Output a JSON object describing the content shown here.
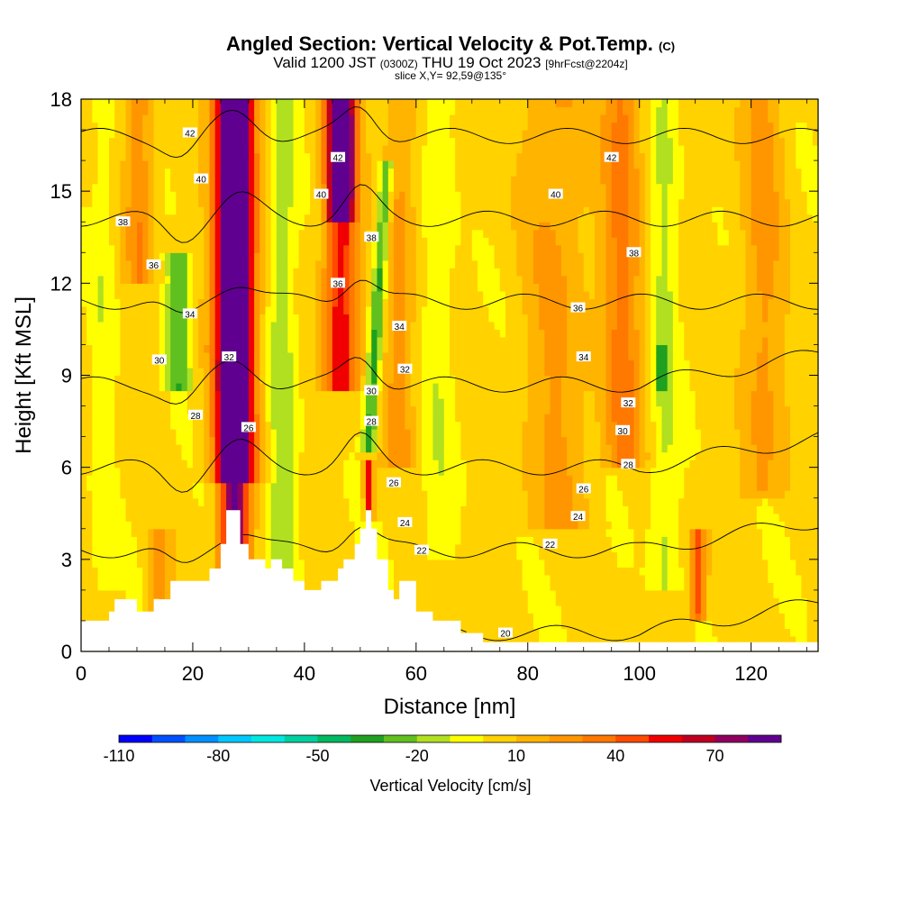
{
  "header": {
    "title": "Angled Section: Vertical Velocity & Pot.Temp.",
    "title_suffix": "(C)",
    "valid_prefix": "Valid 1200 JST",
    "valid_zulu": "(0300Z)",
    "valid_date": "THU 19 Oct 2023",
    "valid_fcst": "[9hrFcst@2204z]",
    "slice": "slice X,Y= 92,59@135°"
  },
  "chart_data": {
    "type": "heatmap",
    "title": "Angled Section: Vertical Velocity & Pot.Temp.",
    "xlabel": "Distance [nm]",
    "ylabel": "Height [Kft MSL]",
    "xlim": [
      0,
      132
    ],
    "ylim": [
      0,
      18
    ],
    "xticks": [
      0,
      20,
      40,
      60,
      80,
      100,
      120
    ],
    "yticks": [
      0,
      3,
      6,
      9,
      12,
      15,
      18
    ],
    "grid": false,
    "colorbar": {
      "label": "Vertical Velocity [cm/s]",
      "tick_labels": [
        "-110",
        "-80",
        "-50",
        "-20",
        "10",
        "40",
        "70"
      ],
      "tick_values": [
        -110,
        -80,
        -50,
        -20,
        10,
        40,
        70
      ],
      "min": -110,
      "max": 90,
      "step": 10,
      "colors": [
        "#0000ff",
        "#0050ff",
        "#0090ff",
        "#00c8ff",
        "#00e8e0",
        "#00d0a0",
        "#00b860",
        "#20a020",
        "#60c020",
        "#b0e020",
        "#ffff00",
        "#ffd200",
        "#ffb400",
        "#ff9600",
        "#ff7800",
        "#ff4a00",
        "#f00000",
        "#c00020",
        "#900060",
        "#600090"
      ]
    },
    "velocity_columns": [
      {
        "x": 27.5,
        "w": 2.6,
        "v": 80,
        "y0": 1.5,
        "y1": 18
      },
      {
        "x": 27.5,
        "w": 4.0,
        "v": 55,
        "y0": 5.5,
        "y1": 18
      },
      {
        "x": 46.5,
        "w": 3.0,
        "v": 55,
        "y0": 8.5,
        "y1": 18
      },
      {
        "x": 46.5,
        "w": 2.2,
        "v": 65,
        "y0": 14,
        "y1": 18
      },
      {
        "x": 51.5,
        "w": 0.8,
        "v": 55,
        "y0": 4.3,
        "y1": 6.2
      },
      {
        "x": 52.0,
        "w": 1.2,
        "v": -40,
        "y0": 6.5,
        "y1": 16
      },
      {
        "x": 17.5,
        "w": 2.2,
        "v": -30,
        "y0": 8.5,
        "y1": 13
      },
      {
        "x": 104.5,
        "w": 2.5,
        "v": -15,
        "y0": 2,
        "y1": 18
      },
      {
        "x": 104,
        "w": 1.0,
        "v": -30,
        "y0": 8.5,
        "y1": 10
      },
      {
        "x": 97,
        "w": 3.5,
        "v": 30,
        "y0": 6,
        "y1": 18
      },
      {
        "x": 110.5,
        "w": 1.5,
        "v": 40,
        "y0": 1,
        "y1": 4
      },
      {
        "x": 10.5,
        "w": 2.5,
        "v": 25,
        "y0": 12,
        "y1": 18
      },
      {
        "x": 14,
        "w": 2.0,
        "v": 20,
        "y0": 1,
        "y1": 4
      },
      {
        "x": 36,
        "w": 2.5,
        "v": -20,
        "y0": 1,
        "y1": 18
      },
      {
        "x": 4,
        "w": 2.0,
        "v": -10,
        "y0": 2,
        "y1": 18
      },
      {
        "x": 64,
        "w": 3.0,
        "v": -10,
        "y0": 3,
        "y1": 18
      },
      {
        "x": 122,
        "w": 4.0,
        "v": 20,
        "y0": 5,
        "y1": 18
      },
      {
        "x": 57,
        "w": 3.0,
        "v": 20,
        "y0": 6,
        "y1": 18
      },
      {
        "x": 85,
        "w": 6.0,
        "v": 18,
        "y0": 4,
        "y1": 18
      }
    ],
    "theta_contours": [
      {
        "level": 20,
        "label": "20",
        "label_x": 76,
        "label_y": 0.6
      },
      {
        "level": 22,
        "label": "22",
        "label_x": 61,
        "label_y": 3.3
      },
      {
        "level": 24,
        "label": "24",
        "label_x": 58,
        "label_y": 4.2
      },
      {
        "level": 26,
        "label": "26",
        "label_x": 56,
        "label_y": 5.5
      },
      {
        "level": 28,
        "label": "28",
        "label_x": 52,
        "label_y": 7.5
      },
      {
        "level": 30,
        "label": "30",
        "label_x": 52,
        "label_y": 8.5
      },
      {
        "level": 32,
        "label": "32",
        "label_x": 58,
        "label_y": 9.2
      },
      {
        "level": 34,
        "label": "34",
        "label_x": 57,
        "label_y": 10.6
      },
      {
        "level": 36,
        "label": "36",
        "label_x": 46,
        "label_y": 12
      },
      {
        "level": 38,
        "label": "38",
        "label_x": 52,
        "label_y": 13.5
      },
      {
        "level": 40,
        "label": "40",
        "label_x": 43,
        "label_y": 14.9
      },
      {
        "level": 42,
        "label": "42",
        "label_x": 46,
        "label_y": 16.1
      }
    ],
    "extra_contour_labels": [
      {
        "label": "42",
        "x": 19.5,
        "y": 16.9
      },
      {
        "label": "40",
        "x": 21.5,
        "y": 15.4
      },
      {
        "label": "38",
        "x": 7.5,
        "y": 14
      },
      {
        "label": "36",
        "x": 13,
        "y": 12.6
      },
      {
        "label": "34",
        "x": 19.5,
        "y": 11
      },
      {
        "label": "30",
        "x": 14,
        "y": 9.5
      },
      {
        "label": "28",
        "x": 20.5,
        "y": 7.7
      },
      {
        "label": "26",
        "x": 30,
        "y": 7.3
      },
      {
        "label": "32",
        "x": 26.5,
        "y": 9.6
      },
      {
        "label": "42",
        "x": 95,
        "y": 16.1
      },
      {
        "label": "40",
        "x": 85,
        "y": 14.9
      },
      {
        "label": "38",
        "x": 99,
        "y": 13
      },
      {
        "label": "36",
        "x": 89,
        "y": 11.2
      },
      {
        "label": "34",
        "x": 90,
        "y": 9.6
      },
      {
        "label": "32",
        "x": 98,
        "y": 8.1
      },
      {
        "label": "30",
        "x": 97,
        "y": 7.2
      },
      {
        "label": "28",
        "x": 98,
        "y": 6.1
      },
      {
        "label": "26",
        "x": 90,
        "y": 5.3
      },
      {
        "label": "24",
        "x": 89,
        "y": 4.4
      },
      {
        "label": "22",
        "x": 84,
        "y": 3.5
      }
    ],
    "terrain": [
      [
        0,
        1
      ],
      [
        5,
        1
      ],
      [
        5,
        1.3
      ],
      [
        6,
        1.3
      ],
      [
        6,
        1.7
      ],
      [
        10,
        1.7
      ],
      [
        10,
        1.3
      ],
      [
        13,
        1.3
      ],
      [
        13,
        1.7
      ],
      [
        16,
        1.7
      ],
      [
        16,
        2.3
      ],
      [
        23,
        2.3
      ],
      [
        23,
        2.7
      ],
      [
        25,
        2.7
      ],
      [
        25,
        3.5
      ],
      [
        26,
        3.5
      ],
      [
        26,
        4.6
      ],
      [
        28.5,
        4.6
      ],
      [
        28.5,
        3.5
      ],
      [
        30,
        3.5
      ],
      [
        30,
        3
      ],
      [
        33,
        3
      ],
      [
        33,
        2.7
      ],
      [
        34,
        2.7
      ],
      [
        34,
        3
      ],
      [
        36,
        3
      ],
      [
        36,
        2.7
      ],
      [
        38,
        2.7
      ],
      [
        38,
        2.3
      ],
      [
        40,
        2.3
      ],
      [
        40,
        2
      ],
      [
        43,
        2
      ],
      [
        43,
        2.3
      ],
      [
        46,
        2.3
      ],
      [
        46,
        2.7
      ],
      [
        47,
        2.7
      ],
      [
        47,
        3
      ],
      [
        49,
        3
      ],
      [
        49,
        3.5
      ],
      [
        50,
        3.5
      ],
      [
        50,
        4
      ],
      [
        51,
        4
      ],
      [
        51,
        4.6
      ],
      [
        52,
        4.6
      ],
      [
        52,
        4
      ],
      [
        53,
        4
      ],
      [
        53,
        3
      ],
      [
        55,
        3
      ],
      [
        55,
        2
      ],
      [
        56,
        2
      ],
      [
        56,
        1.7
      ],
      [
        57,
        1.7
      ],
      [
        57,
        2.3
      ],
      [
        60,
        2.3
      ],
      [
        60,
        1.3
      ],
      [
        63,
        1.3
      ],
      [
        63,
        1
      ],
      [
        68,
        1
      ],
      [
        68,
        0.6
      ],
      [
        72,
        0.6
      ],
      [
        72,
        0.3
      ],
      [
        132,
        0.3
      ],
      [
        132,
        0
      ]
    ]
  }
}
